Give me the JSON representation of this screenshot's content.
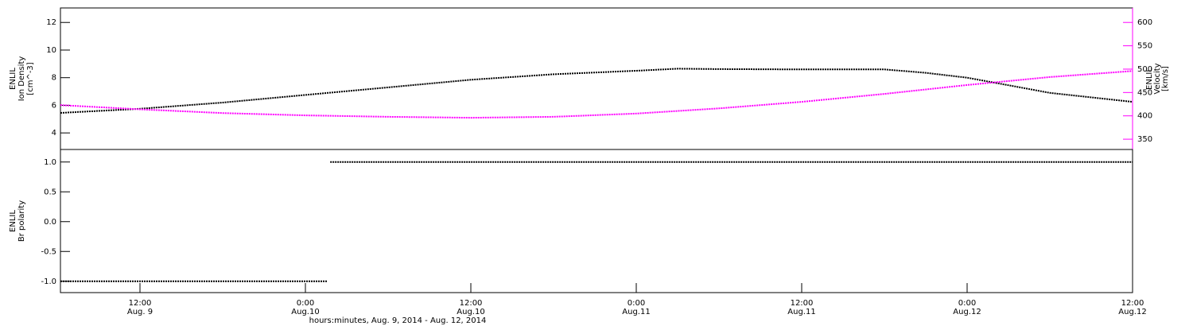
{
  "chart_data": [
    {
      "type": "line",
      "ylabel": [
        "ENLIL",
        "Ion Density",
        "[cm^-3]"
      ],
      "y2label": [
        "ENLIL",
        "Velocity",
        "[km/s]"
      ],
      "y2color": "#ff00ff",
      "xlim": [
        6.23,
        84
      ],
      "ylim": [
        2.8,
        13.05
      ],
      "yticks": [
        4,
        6,
        8,
        10,
        12
      ],
      "y2lim": [
        328,
        631
      ],
      "y2ticks": [
        350,
        400,
        450,
        500,
        550,
        600
      ],
      "series": [
        {
          "name": "Ion Density",
          "color": "#000000",
          "x": [
            6.23,
            12,
            18,
            24,
            30,
            36,
            42,
            48,
            51,
            54,
            60,
            66,
            69,
            72,
            75,
            78,
            84
          ],
          "values": [
            5.45,
            5.75,
            6.2,
            6.75,
            7.3,
            7.85,
            8.25,
            8.5,
            8.65,
            8.62,
            8.6,
            8.6,
            8.35,
            8.0,
            7.45,
            6.9,
            6.25
          ]
        },
        {
          "name": "Velocity",
          "color": "#ff00ff",
          "axis": "y2",
          "x": [
            6.23,
            12,
            18,
            24,
            30,
            36,
            42,
            48,
            54,
            60,
            66,
            72,
            78,
            84
          ],
          "values": [
            423,
            414,
            406,
            401,
            398,
            396,
            398,
            405,
            416,
            430,
            447,
            466,
            483,
            496
          ]
        }
      ]
    },
    {
      "type": "line",
      "ylabel": [
        "ENLIL",
        "Br polarity"
      ],
      "xlabel": "hours:minutes, Aug.  9, 2014 - Aug. 12, 2014",
      "xlim": [
        6.23,
        84
      ],
      "xticks": [
        {
          "value": 12,
          "label": "12:00",
          "date": "Aug. 9"
        },
        {
          "value": 24,
          "label": "0:00",
          "date": "Aug.10"
        },
        {
          "value": 36,
          "label": "12:00",
          "date": "Aug.10"
        },
        {
          "value": 48,
          "label": "0:00",
          "date": "Aug.11"
        },
        {
          "value": 60,
          "label": "12:00",
          "date": "Aug.11"
        },
        {
          "value": 72,
          "label": "0:00",
          "date": "Aug.12"
        },
        {
          "value": 84,
          "label": "12:00",
          "date": "Aug.12"
        }
      ],
      "ylim": [
        -1.19,
        1.21
      ],
      "yticks": [
        {
          "value": -1,
          "label": "-1.0"
        },
        {
          "value": -0.5,
          "label": "-0.5"
        },
        {
          "value": 0,
          "label": "0.0"
        },
        {
          "value": 0.5,
          "label": "0.5"
        },
        {
          "value": 1,
          "label": "1.0"
        }
      ],
      "series": [
        {
          "name": "Br polarity",
          "color": "#000000",
          "x": [
            6.23,
            25.6,
            25.7,
            25.8,
            84
          ],
          "values": [
            -1,
            -1,
            null,
            1,
            1
          ]
        }
      ]
    }
  ]
}
